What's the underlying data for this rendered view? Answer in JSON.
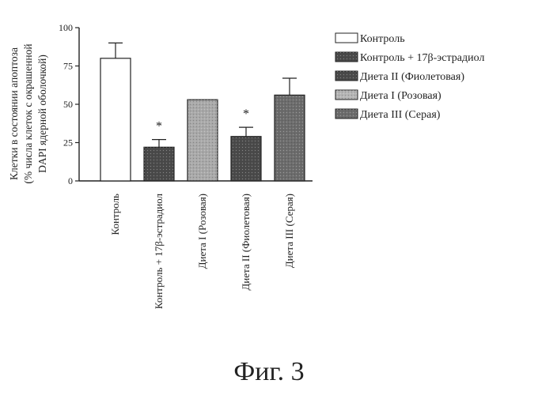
{
  "chart_data": {
    "type": "bar",
    "categories": [
      "Контроль",
      "Контроль + 17β-эстрадиол",
      "Диета I (Розовая)",
      "Диета II (Фиолетовая)",
      "Диета III (Серая)"
    ],
    "values": [
      80,
      22,
      53,
      29,
      56
    ],
    "errors": [
      10,
      5,
      0,
      6,
      11
    ],
    "significance": [
      "",
      "*",
      "",
      "*",
      ""
    ],
    "bar_colors": [
      "#ffffff",
      "#4a4a4a",
      "#a9a9a9",
      "#4a4a4a",
      "#6c6c6c"
    ],
    "ylim": [
      0,
      100
    ],
    "yticks": [
      0,
      25,
      50,
      75,
      100
    ],
    "ylabel_lines": [
      "Клетки в состоянии апоптоза",
      "(% числа клеток с окрашенной",
      "DAPI ядерной оболочкой)"
    ],
    "legend_position": "right",
    "legend": [
      {
        "label": "Контроль",
        "color": "#ffffff"
      },
      {
        "label": "Контроль + 17β-эстрадиол",
        "color": "#4a4a4a"
      },
      {
        "label": "Диета II (Фиолетовая)",
        "color": "#4a4a4a"
      },
      {
        "label": "Диета I (Розовая)",
        "color": "#b5b5b5"
      },
      {
        "label": "Диета III (Серая)",
        "color": "#6c6c6c"
      }
    ]
  },
  "caption": "Фиг. 3"
}
